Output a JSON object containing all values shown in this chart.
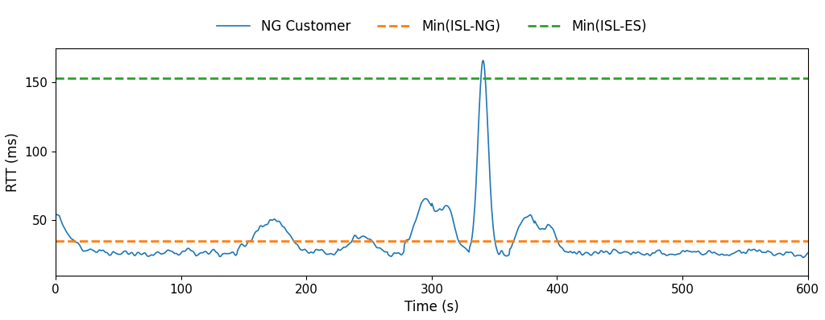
{
  "isl_ng": 35,
  "isl_es": 153,
  "xlim": [
    0,
    600
  ],
  "ylim": [
    10,
    175
  ],
  "xlabel": "Time (s)",
  "ylabel": "RTT (ms)",
  "legend_labels": [
    "NG Customer",
    "Min(ISL-NG)",
    "Min(ISL-ES)"
  ],
  "line_color": "#1f77b4",
  "orange_color": "#ff7f0e",
  "green_color": "#2ca02c",
  "figsize": [
    10.24,
    3.97
  ],
  "dpi": 100,
  "xticks": [
    0,
    100,
    200,
    300,
    400,
    500,
    600
  ],
  "yticks": [
    50,
    100,
    150
  ]
}
